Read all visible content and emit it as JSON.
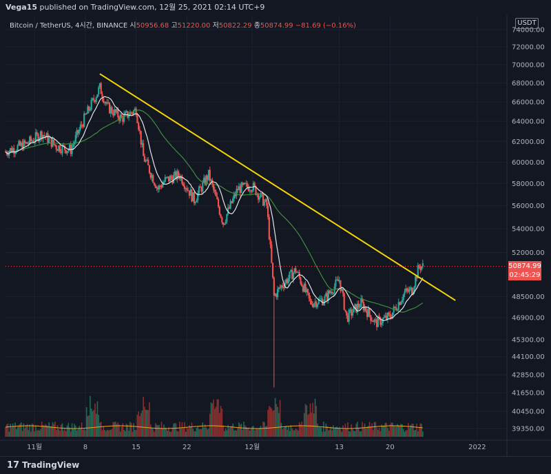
{
  "header": {
    "publisher": "Vega15",
    "published_text": "published on TradingView.com, 12월 25, 2021 02:14 UTC+9"
  },
  "legend": {
    "symbol": "Bitcoin / TetherUS, 4시간, BINANCE",
    "open_label": "시",
    "open": "50956.68",
    "high_label": "고",
    "high": "51220.00",
    "low_label": "저",
    "low": "50822.29",
    "close_label": "종",
    "close": "50874.99",
    "change": "−81.69 (−0.16%)"
  },
  "price_axis": {
    "currency_button": "USDT",
    "ticks": [
      "74000.00",
      "72000.00",
      "70000.00",
      "68000.00",
      "66000.00",
      "64000.00",
      "62000.00",
      "60000.00",
      "58000.00",
      "56000.00",
      "54000.00",
      "52000.00",
      "48500.00",
      "46900.00",
      "45300.00",
      "44100.00",
      "42850.00",
      "41650.00",
      "40450.00",
      "39350.00"
    ],
    "last_price": "50874.99",
    "countdown": "02:45:29"
  },
  "time_axis": {
    "ticks": [
      "11월",
      "8",
      "15",
      "22",
      "12월",
      "13",
      "20",
      "2022"
    ]
  },
  "footer": {
    "brand": "TradingView",
    "brand_mark": "17"
  },
  "colors": {
    "background": "#131722",
    "up": "#26a69a",
    "down": "#ef5350",
    "trendline": "#f5d50a",
    "ma_fast": "#e6e6e6",
    "ma_slow": "#3e8e41",
    "volume_ma": "#f5a623",
    "grid": "#1e222d"
  },
  "chart_data": {
    "type": "candlestick",
    "symbol": "Bitcoin / TetherUS",
    "interval": "4시간",
    "exchange": "BINANCE",
    "y_scale": "log",
    "ylim": [
      38800,
      75000
    ],
    "x_range": [
      "2021-10-28",
      "2022-01-05"
    ],
    "price_path": [
      {
        "date": "2021-10-28",
        "price": 61000
      },
      {
        "date": "2021-10-31",
        "price": 61800
      },
      {
        "date": "2021-11-02",
        "price": 62800
      },
      {
        "date": "2021-11-04",
        "price": 61500
      },
      {
        "date": "2021-11-06",
        "price": 61200
      },
      {
        "date": "2021-11-08",
        "price": 64500
      },
      {
        "date": "2021-11-10",
        "price": 67500
      },
      {
        "date": "2021-11-11",
        "price": 65500
      },
      {
        "date": "2021-11-13",
        "price": 64300
      },
      {
        "date": "2021-11-15",
        "price": 65200
      },
      {
        "date": "2021-11-16",
        "price": 60500
      },
      {
        "date": "2021-11-18",
        "price": 57500
      },
      {
        "date": "2021-11-19",
        "price": 58300
      },
      {
        "date": "2021-11-21",
        "price": 58800
      },
      {
        "date": "2021-11-23",
        "price": 56500
      },
      {
        "date": "2021-11-25",
        "price": 58800
      },
      {
        "date": "2021-11-27",
        "price": 54500
      },
      {
        "date": "2021-11-29",
        "price": 57500
      },
      {
        "date": "2021-12-01",
        "price": 57800
      },
      {
        "date": "2021-12-03",
        "price": 56000
      },
      {
        "date": "2021-12-04",
        "price": 48500
      },
      {
        "date": "2021-12-05",
        "price": 49300
      },
      {
        "date": "2021-12-07",
        "price": 50600
      },
      {
        "date": "2021-12-09",
        "price": 48000
      },
      {
        "date": "2021-12-11",
        "price": 48300
      },
      {
        "date": "2021-12-13",
        "price": 49800
      },
      {
        "date": "2021-12-14",
        "price": 46900
      },
      {
        "date": "2021-12-16",
        "price": 48000
      },
      {
        "date": "2021-12-18",
        "price": 46500
      },
      {
        "date": "2021-12-20",
        "price": 47000
      },
      {
        "date": "2021-12-22",
        "price": 48800
      },
      {
        "date": "2021-12-23",
        "price": 49000
      },
      {
        "date": "2021-12-24",
        "price": 50875
      }
    ],
    "spike_low": {
      "date": "2021-12-04",
      "price": 42000
    },
    "trendline": [
      {
        "date": "2021-11-10",
        "price": 69000
      },
      {
        "date": "2021-12-29",
        "price": 48200
      }
    ],
    "volume_spike_dates": [
      "2021-11-09",
      "2021-11-16",
      "2021-11-26",
      "2021-12-04",
      "2021-12-09"
    ]
  }
}
